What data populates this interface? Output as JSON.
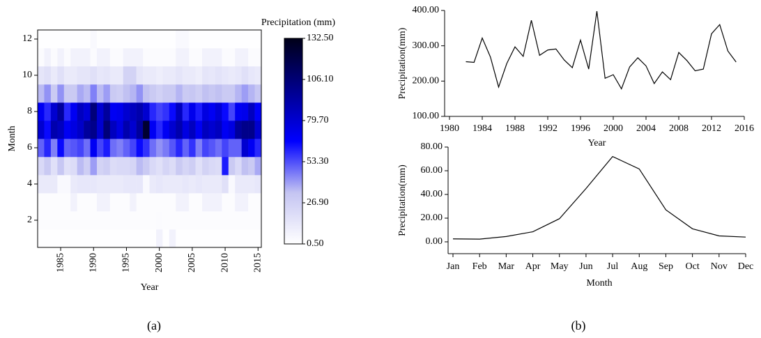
{
  "chart_data": [
    {
      "type": "heatmap",
      "panel_label": "(a)",
      "xlabel": "Year",
      "ylabel": "Month",
      "colorbar_title": "Precipitation (mm)",
      "x": [
        1982,
        1983,
        1984,
        1985,
        1986,
        1987,
        1988,
        1989,
        1990,
        1991,
        1992,
        1993,
        1994,
        1995,
        1996,
        1997,
        1998,
        1999,
        2000,
        2001,
        2002,
        2003,
        2004,
        2005,
        2006,
        2007,
        2008,
        2009,
        2010,
        2011,
        2012,
        2013,
        2014,
        2015
      ],
      "y": [
        1,
        2,
        3,
        4,
        5,
        6,
        7,
        8,
        9,
        10,
        11,
        12
      ],
      "z": [
        [
          1,
          1,
          1,
          1,
          1,
          1,
          1,
          1,
          1,
          1,
          1,
          1,
          1,
          1,
          1,
          1,
          1,
          1,
          8,
          1,
          8,
          1,
          1,
          1,
          1,
          1,
          1,
          1,
          1,
          1,
          1,
          1,
          1,
          1
        ],
        [
          2,
          2,
          2,
          2,
          2,
          2,
          2,
          2,
          2,
          2,
          2,
          2,
          2,
          2,
          2,
          2,
          2,
          2,
          3,
          2,
          2,
          2,
          2,
          2,
          2,
          2,
          2,
          2,
          2,
          2,
          2,
          2,
          2,
          2
        ],
        [
          2,
          2,
          2,
          2,
          2,
          8,
          2,
          2,
          2,
          8,
          8,
          2,
          2,
          2,
          8,
          2,
          2,
          2,
          2,
          2,
          2,
          8,
          8,
          2,
          2,
          8,
          8,
          8,
          2,
          2,
          8,
          8,
          2,
          2
        ],
        [
          12,
          12,
          12,
          4,
          4,
          12,
          14,
          14,
          14,
          12,
          12,
          12,
          12,
          14,
          14,
          14,
          4,
          12,
          14,
          12,
          12,
          12,
          14,
          12,
          14,
          12,
          12,
          12,
          18,
          4,
          12,
          12,
          12,
          14
        ],
        [
          22,
          30,
          18,
          32,
          18,
          20,
          35,
          28,
          40,
          25,
          28,
          20,
          22,
          22,
          24,
          35,
          30,
          22,
          18,
          24,
          20,
          30,
          24,
          28,
          18,
          25,
          22,
          20,
          62,
          30,
          22,
          34,
          30,
          38
        ],
        [
          50,
          60,
          45,
          65,
          50,
          52,
          55,
          48,
          70,
          55,
          62,
          48,
          45,
          50,
          55,
          65,
          58,
          48,
          42,
          46,
          52,
          60,
          50,
          58,
          45,
          55,
          52,
          48,
          55,
          50,
          50,
          80,
          70,
          60
        ],
        [
          80,
          65,
          90,
          85,
          70,
          75,
          82,
          95,
          100,
          80,
          105,
          85,
          75,
          90,
          80,
          95,
          125,
          70,
          60,
          70,
          80,
          90,
          75,
          85,
          70,
          85,
          80,
          85,
          70,
          75,
          95,
          100,
          100,
          80
        ],
        [
          70,
          60,
          80,
          95,
          60,
          70,
          85,
          78,
          105,
          80,
          95,
          70,
          72,
          80,
          85,
          90,
          80,
          60,
          55,
          58,
          65,
          85,
          60,
          72,
          62,
          75,
          70,
          78,
          65,
          55,
          70,
          72,
          85,
          68
        ],
        [
          35,
          42,
          30,
          42,
          30,
          30,
          38,
          35,
          45,
          35,
          40,
          30,
          28,
          34,
          36,
          42,
          34,
          30,
          26,
          30,
          30,
          36,
          30,
          32,
          28,
          34,
          32,
          34,
          30,
          30,
          36,
          40,
          36,
          32
        ],
        [
          15,
          18,
          12,
          18,
          12,
          12,
          15,
          15,
          18,
          14,
          15,
          12,
          12,
          25,
          25,
          15,
          12,
          12,
          10,
          12,
          12,
          15,
          12,
          12,
          10,
          15,
          14,
          16,
          14,
          12,
          14,
          18,
          14,
          12
        ],
        [
          3,
          8,
          3,
          8,
          3,
          8,
          8,
          8,
          3,
          8,
          8,
          3,
          3,
          8,
          8,
          8,
          3,
          3,
          3,
          3,
          3,
          8,
          8,
          3,
          3,
          8,
          8,
          8,
          3,
          3,
          8,
          8,
          3,
          3
        ],
        [
          1,
          1,
          1,
          1,
          1,
          1,
          1,
          1,
          4,
          1,
          1,
          1,
          1,
          1,
          1,
          1,
          1,
          1,
          1,
          1,
          1,
          4,
          4,
          1,
          1,
          1,
          1,
          1,
          1,
          1,
          1,
          1,
          1,
          1
        ]
      ],
      "xlim": [
        1981.5,
        2015.5
      ],
      "xticks": [
        1985,
        1990,
        1995,
        2000,
        2005,
        2010,
        2015
      ],
      "ylim": [
        0.5,
        12.5
      ],
      "yticks": [
        2,
        4,
        6,
        8,
        10,
        12
      ],
      "clim": [
        0.5,
        132.5
      ],
      "cticks": [
        {
          "value": 0.5,
          "label": "0.50"
        },
        {
          "value": 26.9,
          "label": "26.90"
        },
        {
          "value": 53.3,
          "label": "53.30"
        },
        {
          "value": 79.7,
          "label": "79.70"
        },
        {
          "value": 106.1,
          "label": "106.10"
        },
        {
          "value": 132.5,
          "label": "132.50"
        }
      ],
      "colorscale": [
        "#ffffff",
        "#c4c4f2",
        "#0000ff",
        "#00008c",
        "#000018"
      ]
    },
    {
      "type": "line",
      "panel_label": "(b)",
      "xlabel": "Year",
      "ylabel": "Precipitation(mm)",
      "color": "#000000",
      "x": [
        1982,
        1983,
        1984,
        1985,
        1986,
        1987,
        1988,
        1989,
        1990,
        1991,
        1992,
        1993,
        1994,
        1995,
        1996,
        1997,
        1998,
        1999,
        2000,
        2001,
        2002,
        2003,
        2004,
        2005,
        2006,
        2007,
        2008,
        2009,
        2010,
        2011,
        2012,
        2013,
        2014,
        2015
      ],
      "values": [
        255,
        253,
        322,
        268,
        183,
        250,
        297,
        270,
        372,
        273,
        288,
        291,
        260,
        238,
        316,
        234,
        398,
        208,
        218,
        178,
        240,
        266,
        243,
        193,
        226,
        204,
        281,
        258,
        229,
        234,
        334,
        360,
        285,
        254
      ],
      "xlim": [
        1980,
        2016
      ],
      "xticks": [
        1980,
        1984,
        1988,
        1992,
        1996,
        2000,
        2004,
        2008,
        2012,
        2016
      ],
      "ylim": [
        100,
        400
      ],
      "yticks": [
        {
          "value": 100,
          "label": "100.00"
        },
        {
          "value": 200,
          "label": "200.00"
        },
        {
          "value": 300,
          "label": "300.00"
        },
        {
          "value": 400,
          "label": "400.00"
        }
      ]
    },
    {
      "type": "line",
      "xlabel": "Month",
      "ylabel": "Precipitation(mm)",
      "color": "#000000",
      "categories": [
        "Jan",
        "Feb",
        "Mar",
        "Apr",
        "May",
        "Jun",
        "Jul",
        "Aug",
        "Sep",
        "Oct",
        "Nov",
        "Dec"
      ],
      "values": [
        2.5,
        2.3,
        4.5,
        8.5,
        19.5,
        45,
        72,
        61.5,
        27,
        11,
        5,
        4
      ],
      "ylim": [
        -10,
        80
      ],
      "yticks": [
        {
          "value": 0,
          "label": "0.00"
        },
        {
          "value": 20,
          "label": "20.00"
        },
        {
          "value": 40,
          "label": "40.00"
        },
        {
          "value": 60,
          "label": "60.00"
        },
        {
          "value": 80,
          "label": "80.00"
        }
      ]
    }
  ]
}
